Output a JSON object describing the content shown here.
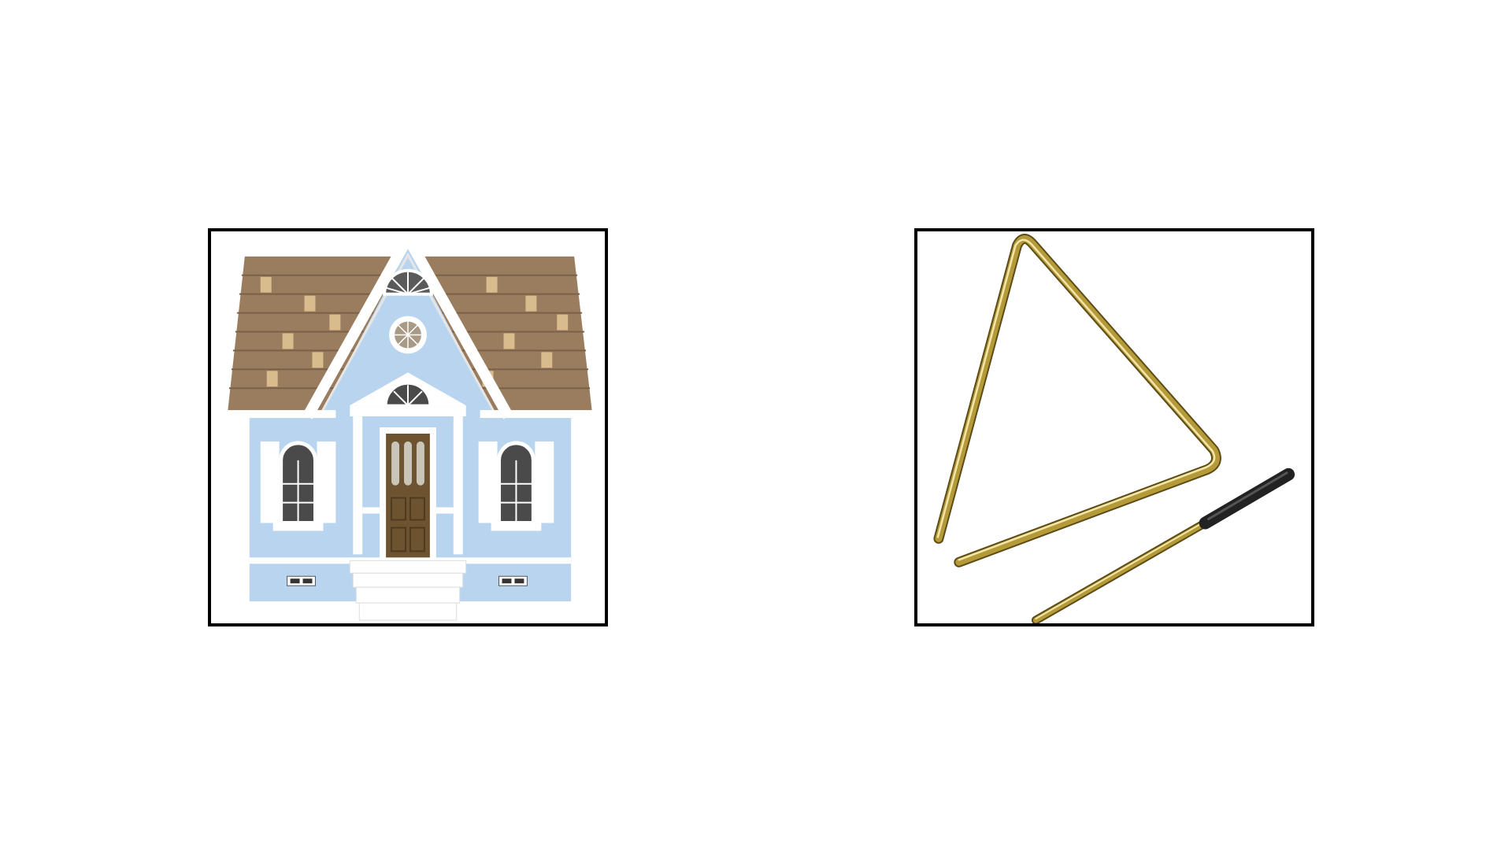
{
  "slide": {
    "background": "#ffffff",
    "frame_border_color": "#000000"
  },
  "pictures": [
    {
      "name": "dollhouse",
      "icon": "house-icon",
      "colors": {
        "roof": "#9a7d5f",
        "roof_patch": "#d9bc8e",
        "wall": "#b9d4ee",
        "trim": "#ffffff",
        "door": "#6e5330",
        "window": "#4a4a4a"
      }
    },
    {
      "name": "triangle-instrument",
      "icon": "triangle-instrument-icon",
      "colors": {
        "metal": "#b59a3a",
        "metal_highlight": "#f2e6a8",
        "metal_shadow": "#5d4c16",
        "grip": "#222222"
      }
    }
  ]
}
